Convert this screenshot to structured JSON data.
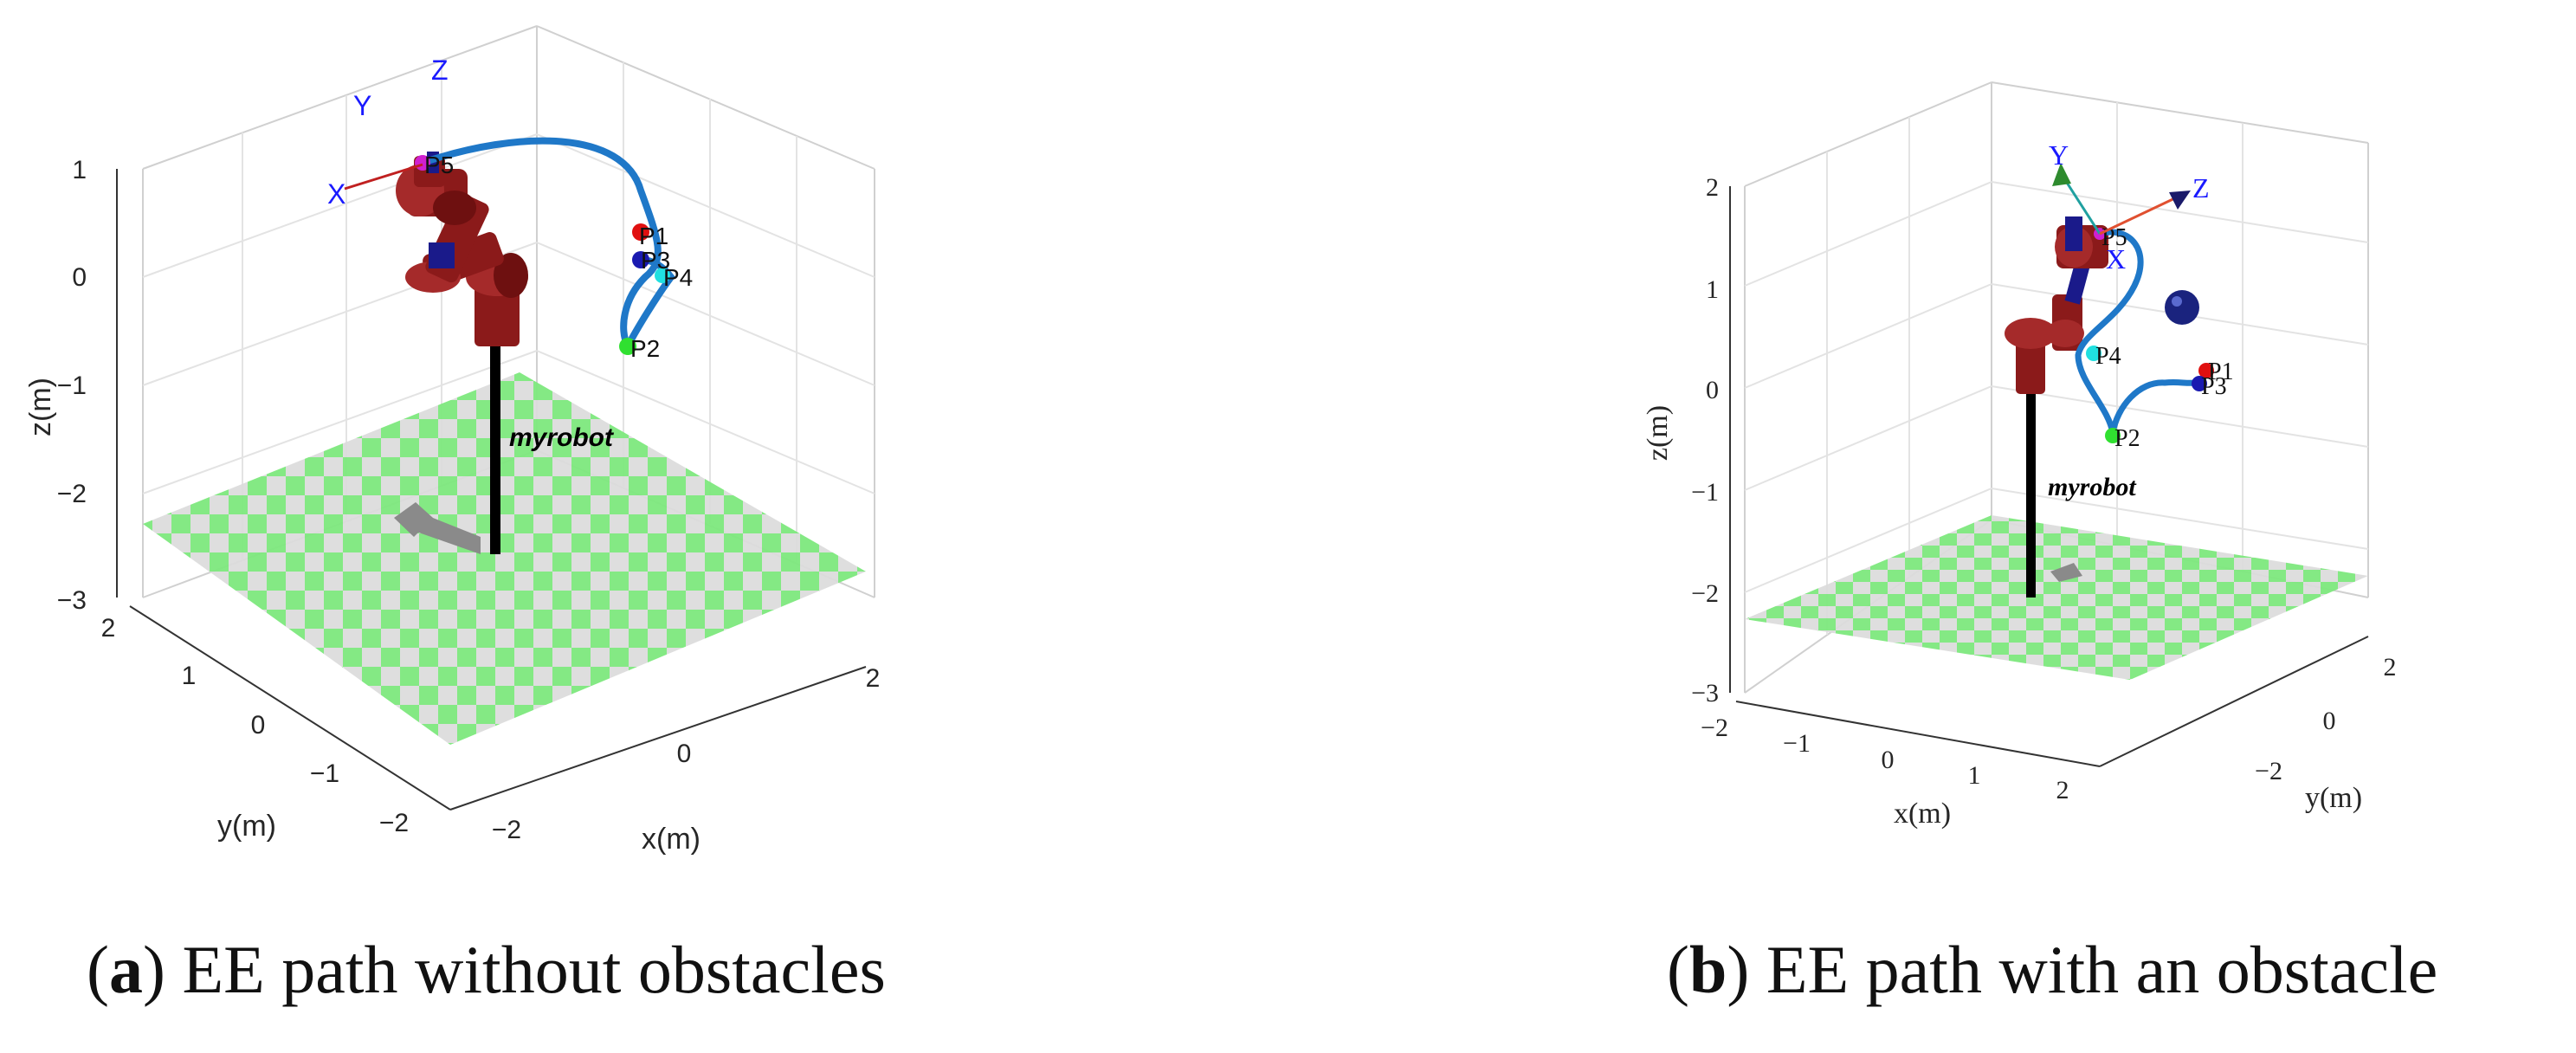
{
  "panel_a": {
    "caption_letter": "a",
    "caption_text": " EE path without obstacles",
    "xlabel": "x(m)",
    "ylabel": "y(m)",
    "zlabel": "z(m)",
    "x_ticks": [
      "−2",
      "0",
      "2"
    ],
    "y_ticks": [
      "2",
      "1",
      "0",
      "−1",
      "−2"
    ],
    "z_ticks": [
      "1",
      "0",
      "−1",
      "−2",
      "−3"
    ],
    "robot_name": "myrobot",
    "points": [
      "P1",
      "P2",
      "P3",
      "P4",
      "P5"
    ],
    "frame": {
      "x": "X",
      "y": "Y",
      "z": "Z"
    },
    "colors": {
      "path": "#1f78c8",
      "robot": "#8b1a1a",
      "floor_a": "#7ee87e",
      "floor_b": "#dcdcdc"
    }
  },
  "panel_b": {
    "caption_letter": "b",
    "caption_text": " EE path with an obstacle",
    "xlabel": "x(m)",
    "ylabel": "y(m)",
    "zlabel": "z(m)",
    "x_ticks": [
      "−2",
      "−1",
      "0",
      "1",
      "2"
    ],
    "y_ticks": [
      "2",
      "0",
      "−2"
    ],
    "z_ticks": [
      "2",
      "1",
      "0",
      "−1",
      "−2",
      "−3"
    ],
    "robot_name": "myrobot",
    "points": [
      "P1",
      "P2",
      "P3",
      "P4",
      "P5"
    ],
    "frame": {
      "x": "X",
      "y": "Y",
      "z": "Z"
    },
    "obstacle_color": "#1a237e"
  }
}
